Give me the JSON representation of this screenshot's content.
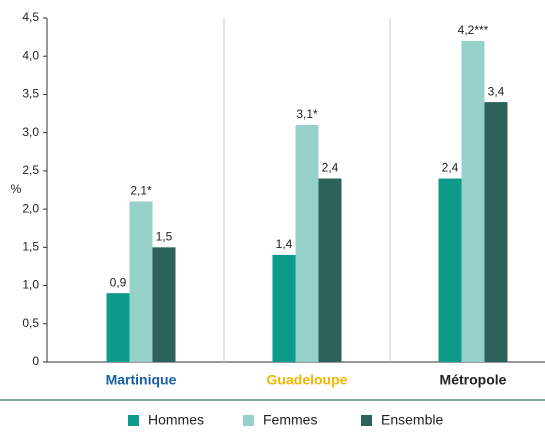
{
  "chart_data": {
    "type": "bar",
    "ylabel": "%",
    "categories": [
      "Martinique",
      "Guadeloupe",
      "Métropole"
    ],
    "category_colors": [
      "#1a5ea0",
      "#f2b600",
      "#222222"
    ],
    "series": [
      {
        "name": "Hommes",
        "color": "#0e9a8b",
        "values": [
          0.9,
          1.4,
          2.4
        ],
        "value_labels": [
          "0,9",
          "1,4",
          "2,4"
        ]
      },
      {
        "name": "Femmes",
        "color": "#95d0c9",
        "values": [
          2.1,
          3.1,
          4.2
        ],
        "value_labels": [
          "2,1*",
          "3,1*",
          "4,2***"
        ]
      },
      {
        "name": "Ensemble",
        "color": "#2c6259",
        "values": [
          1.5,
          2.4,
          3.4
        ],
        "value_labels": [
          "1,5",
          "2,4",
          "3,4"
        ]
      }
    ],
    "ylim": [
      0,
      4.5
    ],
    "yticks": [
      0,
      {
        "value": 0.5,
        "label": "0,5"
      },
      {
        "value": 1,
        "label": "1,0"
      },
      {
        "value": 1.5,
        "label": "1,5"
      },
      {
        "value": 2,
        "label": "2,0"
      },
      {
        "value": 2.5,
        "label": "2,5"
      },
      {
        "value": 3,
        "label": "3,0"
      },
      {
        "value": 3.5,
        "label": "3,5"
      },
      {
        "value": 4,
        "label": "4,0"
      },
      {
        "value": 4.5,
        "label": "4,5"
      }
    ],
    "legend": "bottom"
  }
}
